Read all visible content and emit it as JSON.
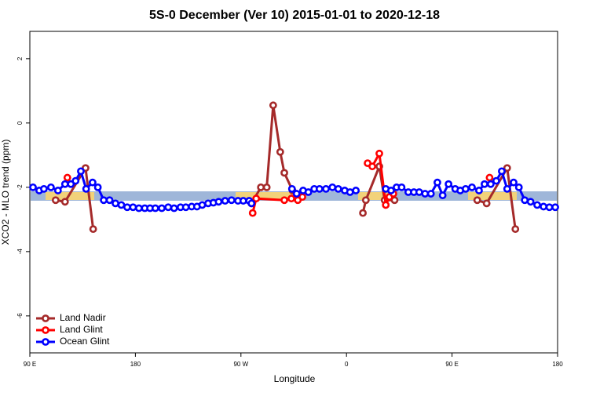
{
  "chart_data": {
    "type": "line",
    "title": "5S-0 December (Ver 10)   2015-01-01 to 2020-12-18",
    "x_label": "Longitude",
    "y_label": "XCO2 - MLO trend (ppm)",
    "xlim": [
      90,
      540
    ],
    "ylim": [
      -7.15,
      2.85
    ],
    "xticks": [
      {
        "value": 90,
        "label": "90 E"
      },
      180,
      {
        "value": 270,
        "label": "90 W"
      },
      {
        "value": 360,
        "label": "0"
      },
      {
        "value": 450,
        "label": "90 E"
      },
      {
        "value": 540,
        "label": "180"
      }
    ],
    "yticks": [
      -6,
      -4,
      -2,
      0,
      2
    ],
    "legend": "bottom-left",
    "series": [
      {
        "name": "Land Nadir",
        "color": "#a52a2a",
        "x": [
          112,
          120,
          137.5,
          144,
          200,
          279,
          287,
          292,
          297.5,
          303.5,
          307,
          314,
          340,
          374,
          376.5,
          388,
          392.5,
          401,
          440,
          471.5,
          479.5,
          497,
          504
        ],
        "values": [
          -2.4,
          -2.45,
          -1.4,
          -3.3,
          null,
          -2.5,
          -2.0,
          -2.0,
          0.55,
          -0.9,
          -1.55,
          -2.1,
          null,
          -2.8,
          -2.4,
          -1.35,
          -2.4,
          -2.4,
          null,
          -2.4,
          -2.5,
          -1.4,
          -3.3
        ]
      },
      {
        "name": "Land Glint",
        "color": "#ff0000",
        "x": [
          122,
          200,
          280,
          283,
          307,
          313,
          318.5,
          322.4,
          350,
          378,
          382,
          388,
          393.5,
          396.6,
          400,
          440,
          482
        ],
        "values": [
          -1.7,
          null,
          -2.8,
          -2.35,
          -2.4,
          -2.35,
          -2.4,
          -2.3,
          null,
          -1.25,
          -1.35,
          -0.95,
          -2.55,
          -2.3,
          -2.2,
          null,
          -1.7
        ]
      },
      {
        "name": "Ocean Glint",
        "color": "#0000ff",
        "x": [
          92.7,
          98,
          102,
          108,
          114,
          120,
          125,
          129,
          133.5,
          138,
          143.5,
          148,
          153,
          158,
          163,
          168,
          173,
          178,
          183,
          188,
          192.5,
          197,
          202.5,
          208,
          213,
          218.5,
          223,
          228,
          232.5,
          237,
          242,
          246.5,
          251,
          256.5,
          262,
          267.5,
          272,
          277,
          279,
          295,
          313.5,
          317.5,
          323,
          327.5,
          332.5,
          337,
          342.5,
          348,
          353,
          358.5,
          363,
          368,
          380,
          393.5,
          398,
          402.7,
          407,
          412.7,
          417.5,
          422,
          427,
          432,
          437.5,
          442,
          447,
          452.7,
          457,
          461.6,
          467,
          473,
          477.7,
          483,
          487.7,
          492.4,
          497,
          502.5,
          507,
          512,
          517,
          522.6,
          528,
          533,
          538
        ],
        "values": [
          -2.0,
          -2.1,
          -2.05,
          -2.0,
          -2.1,
          -1.9,
          -1.9,
          -1.8,
          -1.5,
          -2.05,
          -1.85,
          -2.0,
          -2.4,
          -2.4,
          -2.5,
          -2.55,
          -2.62,
          -2.62,
          -2.65,
          -2.65,
          -2.65,
          -2.65,
          -2.65,
          -2.62,
          -2.65,
          -2.62,
          -2.62,
          -2.6,
          -2.6,
          -2.55,
          -2.5,
          -2.48,
          -2.45,
          -2.42,
          -2.4,
          -2.42,
          -2.42,
          -2.42,
          -2.5,
          null,
          -2.05,
          -2.2,
          -2.1,
          -2.15,
          -2.05,
          -2.05,
          -2.05,
          -2.0,
          -2.05,
          -2.1,
          -2.15,
          -2.1,
          null,
          -2.05,
          -2.1,
          -2.0,
          -2.0,
          -2.15,
          -2.15,
          -2.15,
          -2.2,
          -2.2,
          -1.85,
          -2.25,
          -1.9,
          -2.05,
          -2.1,
          -2.05,
          -2.0,
          -2.1,
          -1.9,
          -1.9,
          -1.8,
          -1.5,
          -2.05,
          -1.85,
          -2.0,
          -2.4,
          -2.45,
          -2.55,
          -2.6,
          -2.62,
          -2.62
        ]
      }
    ]
  }
}
